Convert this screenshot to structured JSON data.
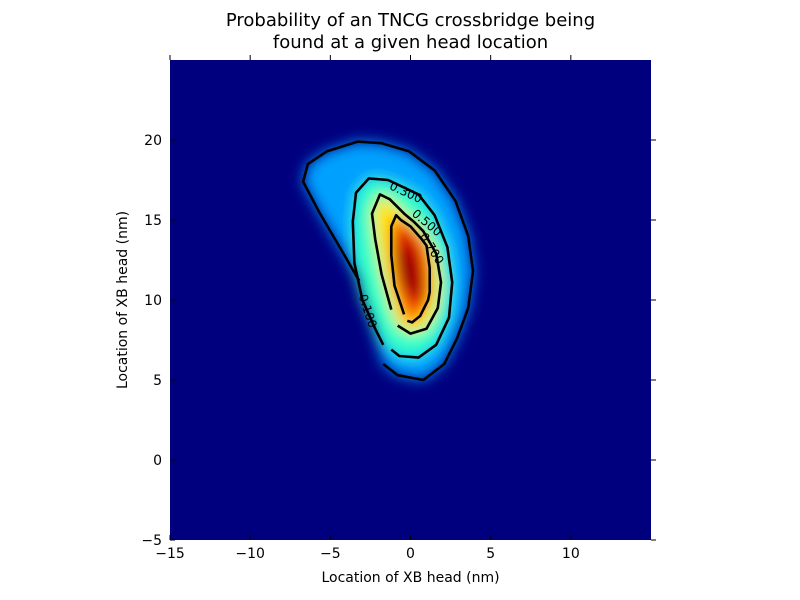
{
  "chart_data": {
    "type": "heatmap",
    "title_lines": [
      "Probability of an TNCG crossbridge being",
      "found at a given head location"
    ],
    "xlabel": "Location of XB head (nm)",
    "ylabel": "Location of XB head (nm)",
    "xlim": [
      -15,
      15
    ],
    "ylim": [
      -5,
      25
    ],
    "x_ticks": [
      -15,
      -10,
      -5,
      0,
      5,
      10
    ],
    "y_ticks": [
      -5,
      0,
      5,
      10,
      15,
      20
    ],
    "colormap": "jet",
    "background_color": "#00007f",
    "contour_color": "#000000",
    "contours": [
      {
        "level": "0.100",
        "points": [
          [
            -3.2,
            11.2
          ],
          [
            -4.3,
            13.1
          ],
          [
            -5.7,
            15.5
          ],
          [
            -6.7,
            17.4
          ],
          [
            -6.4,
            18.5
          ],
          [
            -5.2,
            19.3
          ],
          [
            -3.3,
            19.9
          ],
          [
            -1.8,
            19.8
          ],
          [
            -0.1,
            19.3
          ],
          [
            1.5,
            18.1
          ],
          [
            2.8,
            16.2
          ],
          [
            3.6,
            14.0
          ],
          [
            3.9,
            11.8
          ],
          [
            3.6,
            9.5
          ],
          [
            2.9,
            7.6
          ],
          [
            2.1,
            6.0
          ],
          [
            0.8,
            5.0
          ],
          [
            -0.8,
            5.3
          ],
          [
            -1.7,
            6.0
          ]
        ],
        "label_x": -2.7,
        "label_y": 9.3,
        "label_rot": 72
      },
      {
        "level": "0.300",
        "points": [
          [
            -1.7,
            7.2
          ],
          [
            -2.2,
            8.2
          ],
          [
            -3.0,
            10.0
          ],
          [
            -3.5,
            12.3
          ],
          [
            -3.6,
            14.9
          ],
          [
            -3.4,
            16.7
          ],
          [
            -2.6,
            17.6
          ],
          [
            -1.4,
            17.5
          ],
          [
            0.5,
            16.6
          ],
          [
            1.5,
            15.3
          ],
          [
            2.3,
            13.3
          ],
          [
            2.6,
            11.1
          ],
          [
            2.4,
            8.9
          ],
          [
            1.6,
            7.2
          ],
          [
            0.5,
            6.4
          ],
          [
            -0.7,
            6.5
          ],
          [
            -1.2,
            6.9
          ]
        ],
        "label_x": -0.3,
        "label_y": 16.7,
        "label_rot": 25
      },
      {
        "level": "0.500",
        "points": [
          [
            -1.2,
            9.4
          ],
          [
            -1.8,
            11.6
          ],
          [
            -2.2,
            13.8
          ],
          [
            -2.4,
            15.4
          ],
          [
            -1.9,
            16.6
          ],
          [
            -1.3,
            16.3
          ],
          [
            -0.4,
            15.4
          ],
          [
            0.2,
            14.9
          ],
          [
            0.8,
            14.3
          ],
          [
            1.6,
            12.9
          ],
          [
            1.9,
            11.1
          ],
          [
            1.7,
            9.5
          ],
          [
            1.0,
            8.2
          ],
          [
            0.0,
            7.9
          ],
          [
            -0.8,
            8.4
          ]
        ],
        "label_x": 1.0,
        "label_y": 14.8,
        "label_rot": 40
      },
      {
        "level": "0.700",
        "points": [
          [
            -0.4,
            9.1
          ],
          [
            -1.0,
            10.9
          ],
          [
            -1.2,
            12.8
          ],
          [
            -1.2,
            14.6
          ],
          [
            -0.9,
            15.3
          ],
          [
            -0.6,
            15.0
          ],
          [
            0.0,
            14.6
          ],
          [
            0.7,
            13.8
          ],
          [
            1.0,
            13.4
          ],
          [
            1.2,
            12.0
          ],
          [
            1.2,
            10.5
          ],
          [
            1.1,
            10.0
          ],
          [
            0.6,
            9.0
          ],
          [
            0.1,
            8.6
          ],
          [
            -0.2,
            8.7
          ]
        ],
        "label_x": 1.3,
        "label_y": 13.2,
        "label_rot": 58
      }
    ]
  }
}
